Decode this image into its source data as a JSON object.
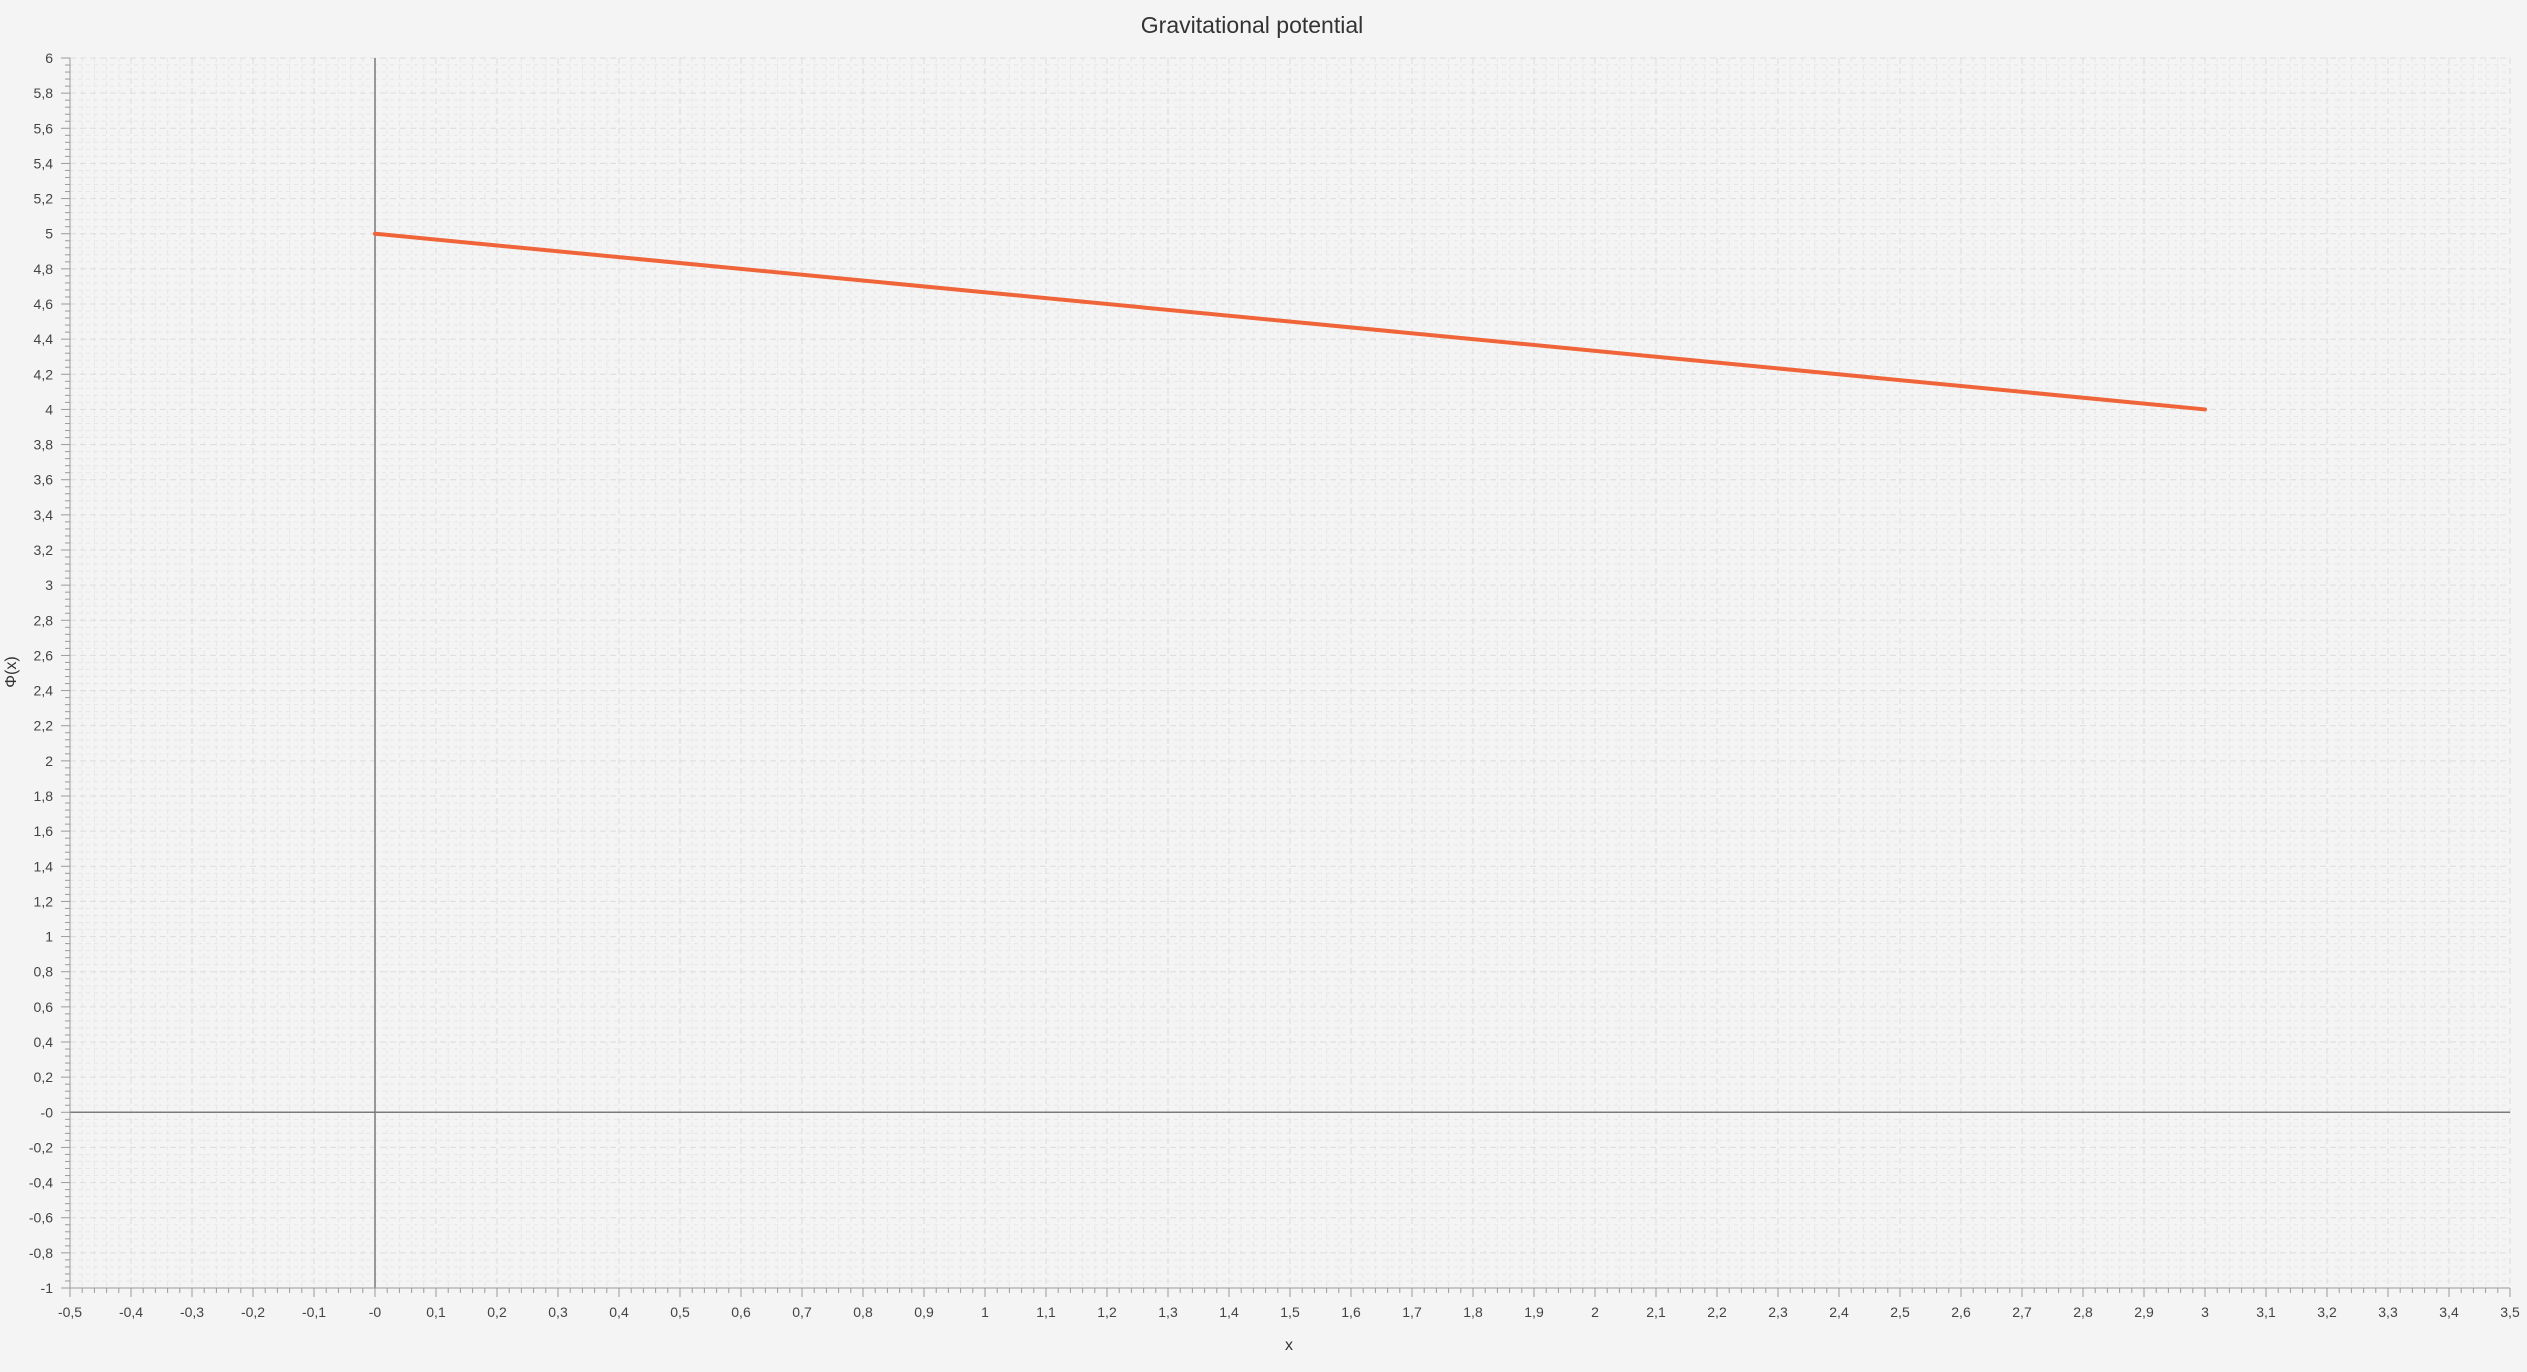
{
  "chart_data": {
    "type": "line",
    "title": "Gravitational potential",
    "xlabel": "x",
    "ylabel": "Φ(x)",
    "xlim": [
      -0.5,
      3.5
    ],
    "ylim": [
      -1,
      6
    ],
    "x_ticks": [
      "-0,5",
      "-0,4",
      "-0,3",
      "-0,2",
      "-0,1",
      "-0",
      "0,1",
      "0,2",
      "0,3",
      "0,4",
      "0,5",
      "0,6",
      "0,7",
      "0,8",
      "0,9",
      "1",
      "1,1",
      "1,2",
      "1,3",
      "1,4",
      "1,5",
      "1,6",
      "1,7",
      "1,8",
      "1,9",
      "2",
      "2,1",
      "2,2",
      "2,3",
      "2,4",
      "2,5",
      "2,6",
      "2,7",
      "2,8",
      "2,9",
      "3",
      "3,1",
      "3,2",
      "3,3",
      "3,4",
      "3,5"
    ],
    "y_ticks": [
      "-1",
      "-0,8",
      "-0,6",
      "-0,4",
      "-0,2",
      "-0",
      "0,2",
      "0,4",
      "0,6",
      "0,8",
      "1",
      "1,2",
      "1,4",
      "1,6",
      "1,8",
      "2",
      "2,2",
      "2,4",
      "2,6",
      "2,8",
      "3",
      "3,2",
      "3,4",
      "3,6",
      "3,8",
      "4",
      "4,2",
      "4,4",
      "4,6",
      "4,8",
      "5",
      "5,2",
      "5,4",
      "5,6",
      "5,8",
      "6"
    ],
    "grid": true,
    "series": [
      {
        "color": "#f0643a",
        "x": [
          0,
          3
        ],
        "y": [
          5,
          4
        ]
      }
    ]
  }
}
